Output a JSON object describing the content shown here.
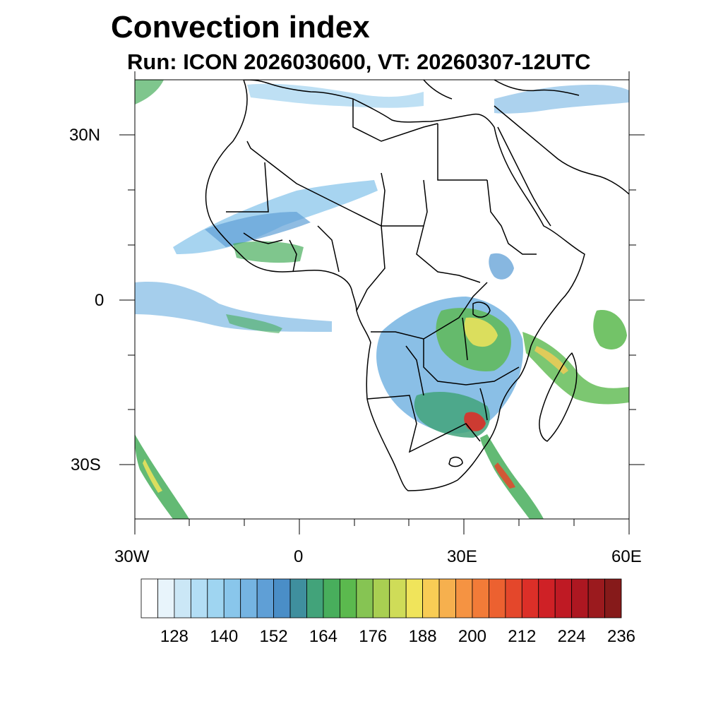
{
  "title": "Convection index",
  "subtitle": "Run: ICON 2026030600,  VT: 20260307-12UTC",
  "axes": {
    "lon_labels": [
      "30W",
      "0",
      "30E",
      "60E"
    ],
    "lat_labels": [
      "30N",
      "0",
      "30S"
    ]
  },
  "colorbar": {
    "labels": [
      "128",
      "140",
      "152",
      "164",
      "176",
      "188",
      "200",
      "212",
      "224",
      "236"
    ],
    "colors": [
      "#ffffff",
      "#e8f4fb",
      "#cbe7f6",
      "#b3def5",
      "#9fd5f1",
      "#89c6eb",
      "#75b4e2",
      "#5f9fd6",
      "#4a8ec7",
      "#3f8f9e",
      "#42a37a",
      "#48ae5c",
      "#5bb94e",
      "#86c453",
      "#a9cf52",
      "#cfdc58",
      "#f0e45b",
      "#f8cc55",
      "#f6b04e",
      "#f59342",
      "#f27b38",
      "#ec6130",
      "#e4472b",
      "#dc2f28",
      "#cf2126",
      "#bf1a24",
      "#ad1721",
      "#9b1a1e",
      "#861a1a"
    ]
  }
}
